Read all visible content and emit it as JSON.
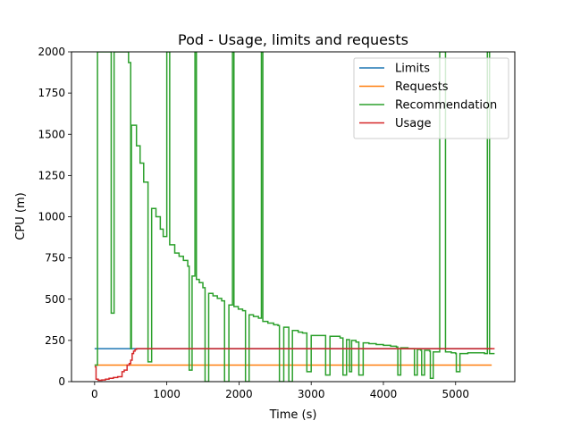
{
  "chart_data": {
    "type": "line",
    "title": "Pod - Usage, limits and requests",
    "xlabel": "Time (s)",
    "ylabel": "CPU (m)",
    "xlim": [
      -320,
      5820
    ],
    "ylim": [
      0,
      2000
    ],
    "xticks": [
      0,
      1000,
      2000,
      3000,
      4000,
      5000
    ],
    "yticks": [
      0,
      250,
      500,
      750,
      1000,
      1250,
      1500,
      1750,
      2000
    ],
    "legend_position": "upper-right",
    "series": [
      {
        "name": "Limits",
        "color": "#1f77b4",
        "step": false,
        "points": [
          [
            0,
            200
          ],
          [
            5500,
            200
          ]
        ]
      },
      {
        "name": "Requests",
        "color": "#ff7f0e",
        "step": false,
        "points": [
          [
            0,
            100
          ],
          [
            5500,
            100
          ]
        ]
      },
      {
        "name": "Recommendation",
        "color": "#2ca02c",
        "step": true,
        "points": [
          [
            0,
            100
          ],
          [
            40,
            2000
          ],
          [
            220,
            2000
          ],
          [
            230,
            415
          ],
          [
            270,
            2000
          ],
          [
            420,
            2000
          ],
          [
            470,
            1935
          ],
          [
            500,
            200
          ],
          [
            510,
            1555
          ],
          [
            580,
            1430
          ],
          [
            630,
            1325
          ],
          [
            680,
            1210
          ],
          [
            740,
            120
          ],
          [
            790,
            1050
          ],
          [
            850,
            1000
          ],
          [
            910,
            925
          ],
          [
            950,
            880
          ],
          [
            1000,
            2000
          ],
          [
            1040,
            830
          ],
          [
            1110,
            780
          ],
          [
            1170,
            760
          ],
          [
            1230,
            735
          ],
          [
            1290,
            700
          ],
          [
            1310,
            70
          ],
          [
            1350,
            640
          ],
          [
            1390,
            2000
          ],
          [
            1410,
            620
          ],
          [
            1450,
            600
          ],
          [
            1500,
            570
          ],
          [
            1530,
            0
          ],
          [
            1580,
            535
          ],
          [
            1640,
            520
          ],
          [
            1700,
            505
          ],
          [
            1760,
            490
          ],
          [
            1800,
            0
          ],
          [
            1860,
            465
          ],
          [
            1910,
            2000
          ],
          [
            1930,
            455
          ],
          [
            1990,
            440
          ],
          [
            2050,
            430
          ],
          [
            2090,
            0
          ],
          [
            2140,
            405
          ],
          [
            2200,
            395
          ],
          [
            2270,
            385
          ],
          [
            2310,
            2000
          ],
          [
            2330,
            365
          ],
          [
            2400,
            355
          ],
          [
            2480,
            345
          ],
          [
            2540,
            340
          ],
          [
            2560,
            0
          ],
          [
            2620,
            330
          ],
          [
            2690,
            0
          ],
          [
            2740,
            310
          ],
          [
            2820,
            300
          ],
          [
            2880,
            295
          ],
          [
            2940,
            60
          ],
          [
            3000,
            280
          ],
          [
            3120,
            280
          ],
          [
            3200,
            40
          ],
          [
            3260,
            275
          ],
          [
            3400,
            265
          ],
          [
            3440,
            40
          ],
          [
            3490,
            255
          ],
          [
            3530,
            60
          ],
          [
            3560,
            250
          ],
          [
            3620,
            240
          ],
          [
            3660,
            40
          ],
          [
            3720,
            235
          ],
          [
            3800,
            230
          ],
          [
            3900,
            225
          ],
          [
            4000,
            220
          ],
          [
            4100,
            215
          ],
          [
            4180,
            210
          ],
          [
            4200,
            40
          ],
          [
            4240,
            205
          ],
          [
            4340,
            200
          ],
          [
            4420,
            200
          ],
          [
            4430,
            40
          ],
          [
            4470,
            195
          ],
          [
            4520,
            190
          ],
          [
            4530,
            40
          ],
          [
            4570,
            190
          ],
          [
            4640,
            185
          ],
          [
            4650,
            20
          ],
          [
            4690,
            180
          ],
          [
            4780,
            2000
          ],
          [
            4860,
            180
          ],
          [
            4880,
            180
          ],
          [
            4940,
            175
          ],
          [
            5000,
            170
          ],
          [
            5010,
            60
          ],
          [
            5060,
            170
          ],
          [
            5170,
            175
          ],
          [
            5300,
            175
          ],
          [
            5400,
            170
          ],
          [
            5440,
            2000
          ],
          [
            5470,
            170
          ],
          [
            5540,
            170
          ]
        ]
      },
      {
        "name": "Usage",
        "color": "#d62728",
        "step": true,
        "points": [
          [
            0,
            90
          ],
          [
            20,
            15
          ],
          [
            50,
            8
          ],
          [
            100,
            10
          ],
          [
            150,
            15
          ],
          [
            200,
            20
          ],
          [
            260,
            25
          ],
          [
            320,
            30
          ],
          [
            380,
            60
          ],
          [
            410,
            70
          ],
          [
            450,
            100
          ],
          [
            480,
            110
          ],
          [
            500,
            130
          ],
          [
            520,
            170
          ],
          [
            540,
            185
          ],
          [
            560,
            195
          ],
          [
            580,
            200
          ],
          [
            600,
            200
          ],
          [
            1000,
            200
          ],
          [
            2000,
            200
          ],
          [
            3000,
            200
          ],
          [
            4000,
            200
          ],
          [
            5000,
            200
          ],
          [
            5540,
            200
          ],
          [
            5500,
            200
          ]
        ]
      }
    ]
  }
}
